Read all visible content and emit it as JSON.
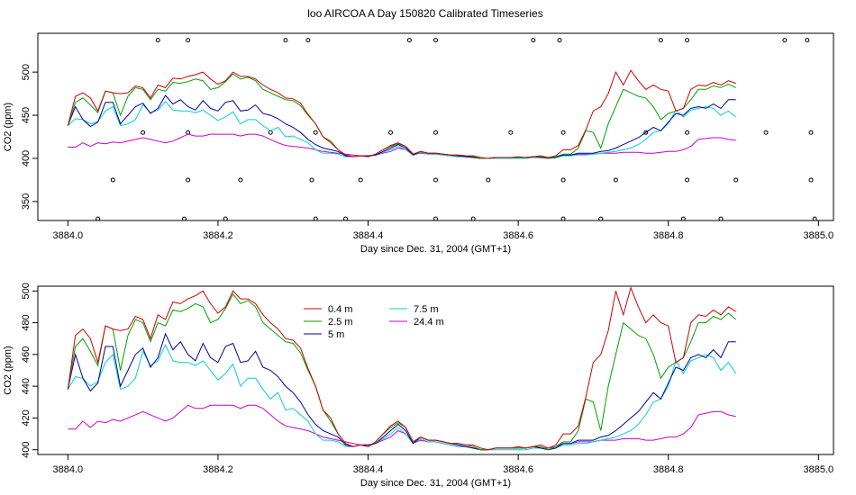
{
  "title": "loo AIRCOA A  Day 150820  Calibrated Timeseries",
  "colors": {
    "0.4 m": "#d00000",
    "2.5 m": "#00a000",
    "5 m": "#00009a",
    "7.5 m": "#00d0d8",
    "24.4 m": "#cc00cc"
  },
  "chart_data": [
    {
      "type": "line",
      "title": "",
      "xlabel": "Day since Dec. 31, 2004 (GMT+1)",
      "ylabel": "CO2 (ppm)",
      "xlim": [
        3883.96,
        3885.02
      ],
      "ylim": [
        328,
        545
      ],
      "xticks": [
        "3884.0",
        "3884.2",
        "3884.4",
        "3884.6",
        "3884.8",
        "3885.0"
      ],
      "yticks": [
        "350",
        "400",
        "450",
        "500"
      ],
      "grid": false,
      "legend": "none",
      "points_note": "",
      "points": [
        [
          3884.04,
          330
        ],
        [
          3884.06,
          375
        ],
        [
          3884.1,
          430
        ],
        [
          3884.12,
          537
        ],
        [
          3884.155,
          330
        ],
        [
          3884.16,
          375
        ],
        [
          3884.16,
          537
        ],
        [
          3884.16,
          430
        ],
        [
          3884.21,
          330
        ],
        [
          3884.23,
          375
        ],
        [
          3884.27,
          430
        ],
        [
          3884.29,
          537
        ],
        [
          3884.32,
          537
        ],
        [
          3884.325,
          375
        ],
        [
          3884.33,
          330
        ],
        [
          3884.33,
          430
        ],
        [
          3884.37,
          330
        ],
        [
          3884.39,
          375
        ],
        [
          3884.43,
          430
        ],
        [
          3884.455,
          537
        ],
        [
          3884.49,
          330
        ],
        [
          3884.49,
          375
        ],
        [
          3884.49,
          537
        ],
        [
          3884.49,
          430
        ],
        [
          3884.54,
          330
        ],
        [
          3884.56,
          375
        ],
        [
          3884.59,
          430
        ],
        [
          3884.62,
          537
        ],
        [
          3884.655,
          537
        ],
        [
          3884.66,
          375
        ],
        [
          3884.66,
          330
        ],
        [
          3884.66,
          430
        ],
        [
          3884.71,
          330
        ],
        [
          3884.73,
          375
        ],
        [
          3884.77,
          430
        ],
        [
          3884.79,
          537
        ],
        [
          3884.82,
          330
        ],
        [
          3884.825,
          375
        ],
        [
          3884.825,
          430
        ],
        [
          3884.825,
          537
        ],
        [
          3884.87,
          330
        ],
        [
          3884.89,
          375
        ],
        [
          3884.93,
          430
        ],
        [
          3884.955,
          537
        ],
        [
          3884.985,
          537
        ],
        [
          3884.99,
          375
        ],
        [
          3884.99,
          430
        ],
        [
          3884.995,
          330
        ]
      ],
      "series": [
        {
          "name": "0.4 m",
          "x0": 3884.0,
          "dx": 0.01,
          "values": [
            438,
            472,
            476,
            470,
            455,
            478,
            476,
            475,
            476,
            484,
            482,
            470,
            485,
            482,
            493,
            492,
            495,
            497,
            500,
            492,
            486,
            490,
            500,
            495,
            495,
            492,
            485,
            480,
            476,
            470,
            469,
            464,
            451,
            440,
            425,
            420,
            410,
            404,
            402,
            403,
            402,
            405,
            410,
            415,
            418,
            414,
            405,
            408,
            406,
            406,
            405,
            404,
            404,
            403,
            403,
            401,
            400,
            401,
            401,
            401,
            402,
            401,
            402,
            403,
            401,
            403,
            410,
            410,
            415,
            433,
            455,
            460,
            475,
            500,
            485,
            502,
            490,
            480,
            485,
            480,
            478,
            455,
            458,
            480,
            485,
            484,
            488,
            485,
            490,
            487
          ]
        },
        {
          "name": "2.5 m",
          "x0": 3884.0,
          "dx": 0.01,
          "values": [
            438,
            465,
            470,
            462,
            453,
            478,
            476,
            450,
            472,
            482,
            480,
            468,
            480,
            478,
            488,
            487,
            489,
            492,
            490,
            480,
            482,
            489,
            498,
            492,
            494,
            490,
            480,
            476,
            472,
            468,
            467,
            461,
            450,
            440,
            425,
            418,
            410,
            404,
            402,
            403,
            402,
            405,
            410,
            414,
            417,
            414,
            405,
            408,
            406,
            406,
            405,
            404,
            404,
            403,
            402,
            400,
            400,
            401,
            401,
            401,
            401,
            401,
            402,
            402,
            400,
            402,
            405,
            405,
            412,
            432,
            430,
            412,
            440,
            460,
            480,
            476,
            472,
            470,
            460,
            445,
            452,
            455,
            458,
            468,
            480,
            480,
            484,
            482,
            486,
            482
          ]
        },
        {
          "name": "5 m",
          "x0": 3884.0,
          "dx": 0.01,
          "values": [
            438,
            460,
            445,
            437,
            442,
            465,
            465,
            440,
            450,
            460,
            464,
            452,
            458,
            473,
            463,
            468,
            460,
            456,
            467,
            458,
            455,
            465,
            467,
            455,
            456,
            462,
            452,
            450,
            446,
            440,
            436,
            430,
            422,
            416,
            412,
            410,
            408,
            403,
            402,
            403,
            403,
            404,
            408,
            412,
            416,
            412,
            404,
            408,
            406,
            406,
            405,
            404,
            403,
            402,
            401,
            400,
            400,
            401,
            401,
            401,
            401,
            401,
            402,
            401,
            400,
            401,
            404,
            404,
            406,
            406,
            406,
            408,
            409,
            412,
            416,
            420,
            424,
            430,
            436,
            432,
            442,
            452,
            450,
            458,
            460,
            458,
            463,
            458,
            468,
            468
          ]
        },
        {
          "name": "7.5 m",
          "x0": 3884.0,
          "dx": 0.01,
          "values": [
            438,
            446,
            445,
            440,
            443,
            455,
            460,
            438,
            440,
            445,
            462,
            453,
            456,
            466,
            456,
            455,
            455,
            453,
            456,
            450,
            444,
            448,
            454,
            440,
            445,
            445,
            438,
            432,
            436,
            425,
            426,
            422,
            418,
            410,
            406,
            406,
            405,
            402,
            402,
            403,
            402,
            404,
            407,
            410,
            414,
            410,
            404,
            407,
            405,
            405,
            404,
            403,
            402,
            402,
            401,
            400,
            400,
            400,
            400,
            400,
            400,
            400,
            401,
            401,
            400,
            401,
            403,
            403,
            404,
            404,
            405,
            406,
            407,
            408,
            410,
            412,
            416,
            422,
            430,
            432,
            440,
            456,
            448,
            456,
            458,
            460,
            458,
            450,
            455,
            448
          ]
        },
        {
          "name": "24.4 m",
          "x0": 3884.0,
          "dx": 0.01,
          "values": [
            413,
            413,
            418,
            414,
            418,
            417,
            419,
            418,
            420,
            422,
            424,
            422,
            420,
            418,
            420,
            424,
            428,
            426,
            426,
            428,
            428,
            428,
            428,
            426,
            428,
            428,
            426,
            422,
            418,
            415,
            414,
            413,
            412,
            410,
            408,
            407,
            406,
            405,
            404,
            403,
            403,
            404,
            406,
            408,
            412,
            410,
            404,
            406,
            405,
            405,
            404,
            403,
            402,
            402,
            401,
            400,
            400,
            401,
            401,
            401,
            401,
            401,
            402,
            401,
            401,
            402,
            404,
            404,
            405,
            405,
            405,
            406,
            406,
            406,
            407,
            407,
            407,
            406,
            406,
            407,
            408,
            408,
            410,
            414,
            422,
            423,
            424,
            424,
            422,
            421
          ]
        }
      ]
    },
    {
      "type": "line",
      "title": "",
      "xlabel": "Day since Dec. 31, 2004 (GMT+1)",
      "ylabel": "CO2 (ppm)",
      "xlim": [
        3883.96,
        3885.02
      ],
      "ylim": [
        397,
        503
      ],
      "xticks": [
        "3884.0",
        "3884.2",
        "3884.4",
        "3884.6",
        "3884.8",
        "3885.0"
      ],
      "yticks": [
        "400",
        "420",
        "440",
        "460",
        "480",
        "500"
      ],
      "grid": false,
      "legend": "top-center",
      "legend_entries": [
        "0.4 m",
        "2.5 m",
        "5 m",
        "7.5 m",
        "24.4 m"
      ],
      "series_ref": "same as first panel"
    }
  ]
}
